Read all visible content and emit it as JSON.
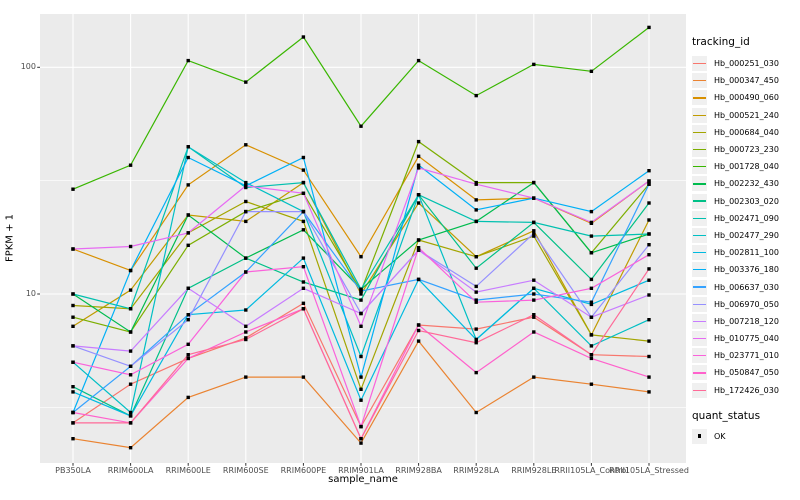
{
  "chart_data": {
    "type": "line",
    "title": "",
    "xlabel": "sample_name",
    "ylabel": "FPKM + 1",
    "y_scale": "log10",
    "ylim": [
      1.8,
      175
    ],
    "grid": true,
    "legend_position": "right",
    "y_ticks": [
      {
        "label": "100",
        "value": 100
      },
      {
        "label": "10",
        "value": 10
      }
    ],
    "y_minor_values": [
      31.62,
      3.162
    ],
    "categories": [
      "PB350LA",
      "RRIM600LA",
      "RRIM600LE",
      "RRIM600SE",
      "RRIM600PE",
      "RRIM901LA",
      "RRIM928BA",
      "RRIM928LA",
      "RRIM928LE",
      "RRII105LA_Control",
      "RRII105LA_Stressed"
    ],
    "series": [
      {
        "name": "Hb_000251_030",
        "color": "#F8766D",
        "values": [
          2.7,
          4.0,
          5.2,
          6.4,
          9.1,
          2.6,
          7.3,
          7.0,
          7.9,
          5.4,
          5.3
        ]
      },
      {
        "name": "Hb_000347_450",
        "color": "#EA8331",
        "values": [
          2.3,
          2.1,
          3.5,
          4.3,
          4.3,
          2.2,
          6.2,
          3.0,
          4.3,
          4.0,
          3.7
        ]
      },
      {
        "name": "Hb_000490_060",
        "color": "#D89000",
        "values": [
          15.8,
          12.7,
          30.3,
          45.5,
          35.2,
          14.6,
          40.5,
          26.0,
          26.5,
          20.5,
          31.5
        ]
      },
      {
        "name": "Hb_000521_240",
        "color": "#C09B00",
        "values": [
          7.2,
          10.4,
          22.3,
          20.9,
          31.0,
          10.0,
          25.2,
          14.6,
          19.0,
          6.6,
          21.2
        ]
      },
      {
        "name": "Hb_000684_040",
        "color": "#A3A500",
        "values": [
          8.9,
          8.6,
          18.6,
          25.6,
          20.9,
          3.8,
          17.3,
          14.6,
          18.0,
          6.6,
          6.2
        ]
      },
      {
        "name": "Hb_000723_230",
        "color": "#7CAE00",
        "values": [
          7.9,
          6.8,
          16.4,
          23.1,
          27.8,
          10.3,
          47.0,
          31.0,
          31.0,
          15.2,
          30.5
        ]
      },
      {
        "name": "Hb_001728_040",
        "color": "#39B600",
        "values": [
          29,
          37,
          107,
          86,
          136,
          55,
          107,
          75,
          103,
          96,
          150
        ]
      },
      {
        "name": "Hb_002232_430",
        "color": "#00BB4E",
        "values": [
          10.0,
          6.8,
          22.3,
          14.4,
          19.2,
          10.5,
          17.3,
          20.9,
          31.0,
          15.2,
          18.4
        ]
      },
      {
        "name": "Hb_002303_020",
        "color": "#00C087",
        "values": [
          3.9,
          2.9,
          10.6,
          14.4,
          11.3,
          9.4,
          27.4,
          13.0,
          20.7,
          11.6,
          25.2
        ]
      },
      {
        "name": "Hb_002471_090",
        "color": "#00C0AF",
        "values": [
          10.0,
          8.6,
          44.6,
          29.5,
          31.0,
          10.5,
          27.4,
          20.9,
          20.7,
          18.0,
          18.4
        ]
      },
      {
        "name": "Hb_002477_290",
        "color": "#00BFC4",
        "values": [
          5.0,
          3.0,
          44.6,
          31.0,
          23.1,
          5.3,
          27.4,
          6.3,
          10.6,
          5.9,
          7.7
        ]
      },
      {
        "name": "Hb_002811_100",
        "color": "#00BAE0",
        "values": [
          3.7,
          2.9,
          8.1,
          8.5,
          14.4,
          3.4,
          11.6,
          6.3,
          10.6,
          9.0,
          11.5
        ]
      },
      {
        "name": "Hb_003376_180",
        "color": "#00B0F6",
        "values": [
          3.0,
          12.7,
          40.0,
          30.0,
          40.0,
          4.3,
          37.0,
          23.5,
          26.5,
          23.1,
          35.0
        ]
      },
      {
        "name": "Hb_006637_030",
        "color": "#35A2FF",
        "values": [
          3.0,
          4.8,
          8.1,
          12.5,
          23.1,
          10.3,
          11.6,
          9.4,
          10.0,
          9.2,
          30.5
        ]
      },
      {
        "name": "Hb_006970_050",
        "color": "#9590FF",
        "values": [
          5.9,
          4.8,
          7.7,
          23.1,
          23.1,
          8.2,
          15.6,
          10.8,
          18.5,
          7.9,
          16.5
        ]
      },
      {
        "name": "Hb_007218_120",
        "color": "#C77CFF",
        "values": [
          5.9,
          5.6,
          10.6,
          7.2,
          10.6,
          8.2,
          15.6,
          10.2,
          11.5,
          7.9,
          9.9
        ]
      },
      {
        "name": "Hb_010775_040",
        "color": "#E76BF3",
        "values": [
          15.8,
          16.2,
          18.6,
          30.0,
          27.8,
          7.2,
          36.0,
          30.5,
          26.5,
          20.7,
          31.5
        ]
      },
      {
        "name": "Hb_023771_010",
        "color": "#FA62DB",
        "values": [
          5.0,
          4.4,
          6.0,
          12.5,
          13.2,
          2.6,
          16.0,
          9.2,
          9.4,
          10.6,
          14.9
        ]
      },
      {
        "name": "Hb_050847_050",
        "color": "#FF61CC",
        "values": [
          3.0,
          2.7,
          5.2,
          6.8,
          8.6,
          2.3,
          7.3,
          4.5,
          6.8,
          5.2,
          4.3
        ]
      },
      {
        "name": "Hb_172426_030",
        "color": "#FF6A98",
        "values": [
          2.7,
          2.7,
          5.4,
          6.3,
          8.6,
          2.3,
          6.9,
          6.1,
          8.1,
          5.4,
          12.9
        ]
      }
    ],
    "legend": {
      "tracking_title": "tracking_id",
      "quant_title": "quant_status",
      "quant_label": "OK"
    },
    "point_shape": "filled-square",
    "colors": {
      "panel_bg": "#EBEBEB",
      "grid": "#FFFFFF",
      "point": "#000000",
      "tick_mark": "#333333",
      "tick_label": "#4D4D4D",
      "legend_key_bg": "#F0F0F0"
    }
  }
}
